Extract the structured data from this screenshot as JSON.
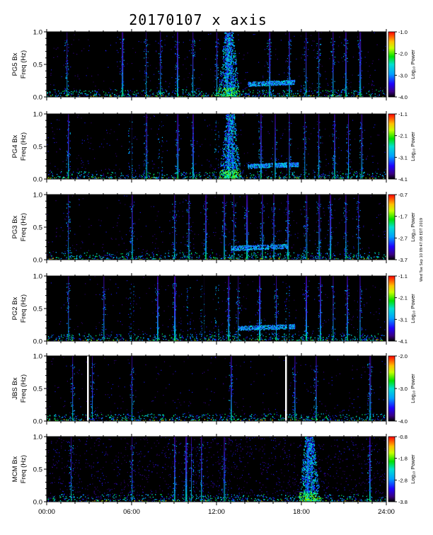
{
  "title": "20170107 x axis",
  "footnote": "Wed Tue Sep 10 09:47:08 EDT 2019",
  "chart_data": [
    {
      "type": "heatmap",
      "station": "PG5 Bx",
      "ylabel": "Freq (Hz)",
      "ylim": [
        0.0,
        1.0
      ],
      "yticks": [
        "0.0",
        "0.5",
        "1.0"
      ],
      "colorbar_label": "Log₁₀ Power",
      "colorbar_ticks": [
        "-1.0",
        "-2.0",
        "-3.0",
        "-4.0"
      ],
      "vmin": -4.0,
      "vmax": -1.0,
      "broadband_hours": [
        1.4,
        5.3,
        7.0,
        8.0,
        9.2,
        10.3,
        12.0,
        12.7,
        13.0,
        15.7,
        17.1,
        18.3,
        19.2,
        20.2,
        21.1,
        22.1
      ],
      "event_hours": [
        12.7,
        13.0
      ],
      "band": {
        "start": 14.2,
        "end": 17.5,
        "freq": 0.2
      },
      "gap_hours": []
    },
    {
      "type": "heatmap",
      "station": "PG4 Bx",
      "ylabel": "Freq (Hz)",
      "ylim": [
        0.0,
        1.0
      ],
      "yticks": [
        "0.0",
        "0.5",
        "1.0"
      ],
      "colorbar_label": "Log₁₀ Power",
      "colorbar_ticks": [
        "-1.1",
        "-2.1",
        "-3.1",
        "-4.1"
      ],
      "vmin": -4.1,
      "vmax": -1.1,
      "broadband_hours": [
        1.5,
        5.9,
        7.0,
        8.0,
        9.2,
        10.3,
        12.0,
        12.8,
        13.1,
        15.1,
        16.1,
        17.1,
        18.2,
        19.2,
        20.3,
        21.3,
        22.2
      ],
      "event_hours": [
        12.8,
        13.1
      ],
      "band": {
        "start": 14.2,
        "end": 17.8,
        "freq": 0.2
      },
      "gap_hours": [
        2.0,
        5.9,
        8.0,
        10.0,
        11.0,
        12.0,
        14.0,
        16.0,
        17.0,
        18.0,
        19.0,
        20.0,
        21.0,
        22.0
      ]
    },
    {
      "type": "heatmap",
      "station": "PG3 Bx",
      "ylabel": "Freq (Hz)",
      "ylim": [
        0.0,
        1.0
      ],
      "yticks": [
        "0.0",
        "0.5",
        "1.0"
      ],
      "colorbar_label": "Log₁₀ Power",
      "colorbar_ticks": [
        "-0.7",
        "-1.7",
        "-2.7",
        "-3.7"
      ],
      "vmin": -3.7,
      "vmax": -0.7,
      "broadband_hours": [
        1.5,
        6.0,
        9.0,
        10.0,
        11.2,
        12.5,
        13.2,
        14.1,
        15.2,
        16.0,
        17.0,
        18.3,
        19.2,
        20.0,
        21.1,
        22.0
      ],
      "event_hours": [],
      "band": {
        "start": 13.0,
        "end": 17.0,
        "freq": 0.18
      },
      "gap_hours": []
    },
    {
      "type": "heatmap",
      "station": "PG2 Bx",
      "ylabel": "Freq (Hz)",
      "ylim": [
        0.0,
        1.0
      ],
      "yticks": [
        "0.0",
        "0.5",
        "1.0"
      ],
      "colorbar_label": "Log₁₀ Power",
      "colorbar_ticks": [
        "-1.1",
        "-2.1",
        "-3.1",
        "-4.1"
      ],
      "vmin": -4.1,
      "vmax": -1.1,
      "broadband_hours": [
        1.5,
        4.0,
        6.0,
        7.8,
        9.0,
        10.0,
        11.0,
        12.0,
        12.8,
        13.5,
        15.0,
        16.2,
        17.0,
        18.3,
        19.3,
        20.2,
        21.2,
        22.1
      ],
      "event_hours": [],
      "band": {
        "start": 13.5,
        "end": 17.5,
        "freq": 0.2
      },
      "gap_hours": [
        2.0,
        6.0,
        8.0,
        10.0,
        11.0,
        12.0,
        13.0,
        17.0,
        19.0,
        20.0,
        22.0
      ]
    },
    {
      "type": "heatmap",
      "station": "JBS Bx",
      "ylabel": "Freq (Hz)",
      "ylim": [
        0.0,
        1.0
      ],
      "yticks": [
        "0.0",
        "0.5",
        "1.0"
      ],
      "colorbar_label": "Log₁₀ Power",
      "colorbar_ticks": [
        "-2.0",
        "-3.0",
        "-4.0"
      ],
      "vmin": -4.0,
      "vmax": -2.0,
      "broadband_hours": [
        1.8,
        3.2,
        6.0,
        13.0,
        17.5,
        19.0,
        22.8
      ],
      "event_hours": [],
      "band": null,
      "gap_hours": [],
      "white_gap_hours": [
        2.85,
        16.85
      ]
    },
    {
      "type": "heatmap",
      "station": "MCM Bx",
      "ylabel": "Freq (Hz)",
      "ylim": [
        0.0,
        1.0
      ],
      "yticks": [
        "0.0",
        "0.5",
        "1.0"
      ],
      "colorbar_label": "Log₁₀ Power",
      "colorbar_ticks": [
        "-0.8",
        "-1.8",
        "-2.8",
        "-3.8"
      ],
      "vmin": -3.8,
      "vmax": -0.8,
      "broadband_hours": [
        1.7,
        6.0,
        9.0,
        9.8,
        10.2,
        10.9,
        12.5,
        18.4,
        18.7,
        22.8
      ],
      "event_hours": [
        18.4,
        18.7
      ],
      "band": null,
      "gap_hours": [],
      "noisy": true
    }
  ],
  "x_axis": {
    "xlim": [
      0,
      24
    ],
    "tick_labels": [
      "00:00",
      "06:00",
      "12:00",
      "18:00",
      "24:00"
    ]
  }
}
